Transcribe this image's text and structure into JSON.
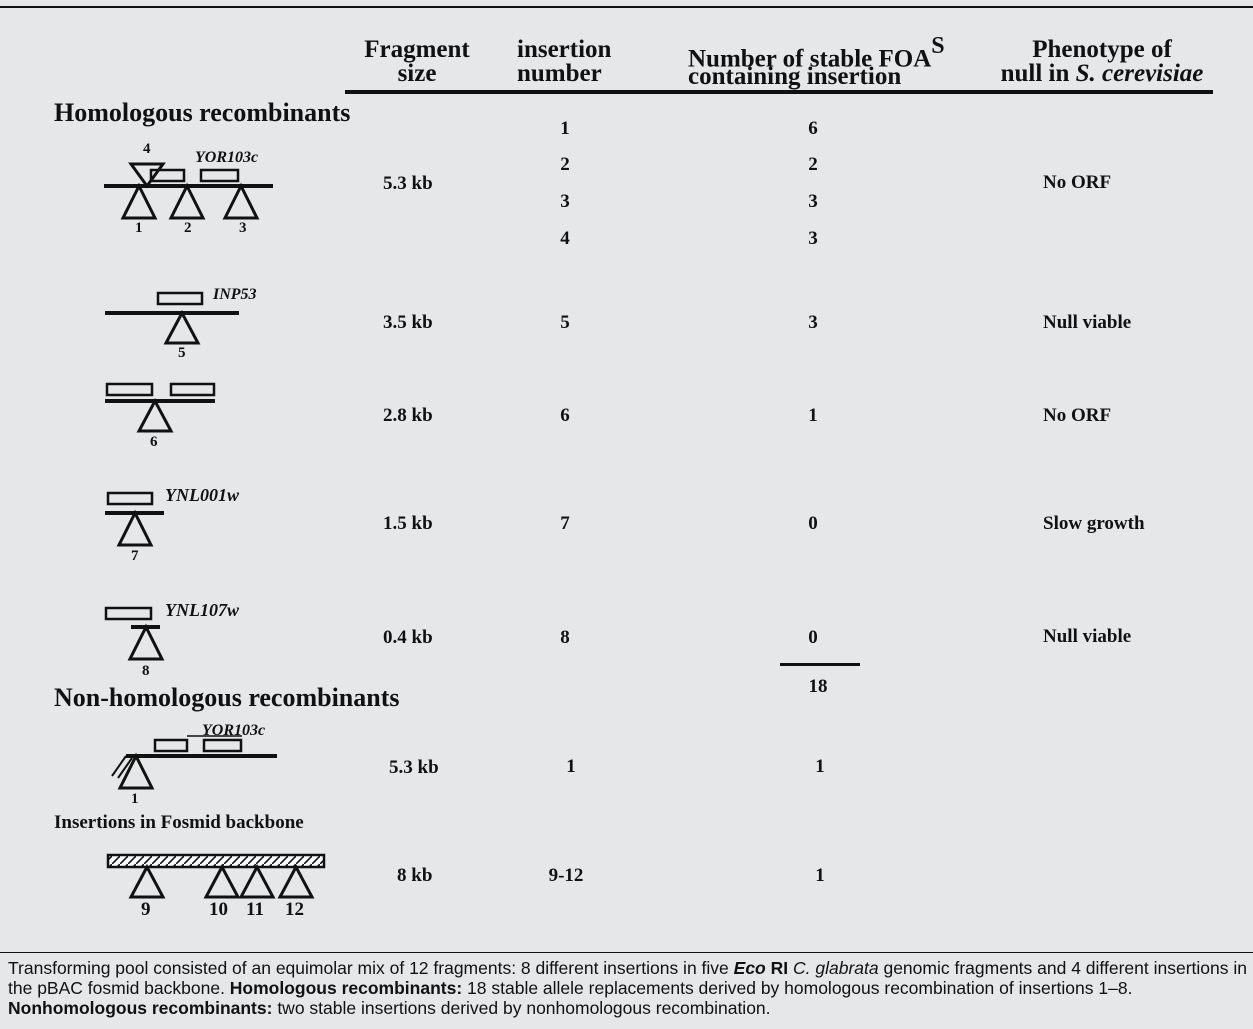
{
  "headers": {
    "fragment_size": [
      "Fragment",
      "size"
    ],
    "insertion_number": [
      "insertion",
      "number"
    ],
    "stable_foa": [
      "Number of stable FOA",
      "S",
      "containing insertion"
    ],
    "phenotype": [
      "Phenotype of",
      "null in ",
      "S. cerevisiae"
    ]
  },
  "sections": {
    "homologous": "Homologous recombinants",
    "nonhomologous": "Non-homologous recombinants",
    "fosmid": "Insertions in Fosmid backbone"
  },
  "rows": [
    {
      "gene": "YOR103c",
      "size": "5.3 kb",
      "insertions": [
        "1",
        "2",
        "3",
        "4"
      ],
      "counts": [
        "6",
        "2",
        "3",
        "3"
      ],
      "phenotype": "No ORF",
      "labels": [
        "4",
        "1",
        "2",
        "3"
      ]
    },
    {
      "gene": "INP53",
      "size": "3.5 kb",
      "insertions": [
        "5"
      ],
      "counts": [
        "3"
      ],
      "phenotype": "Null viable",
      "labels": [
        "5"
      ]
    },
    {
      "gene": "",
      "size": "2.8 kb",
      "insertions": [
        "6"
      ],
      "counts": [
        "1"
      ],
      "phenotype": "No ORF",
      "labels": [
        "6"
      ]
    },
    {
      "gene": "YNL001w",
      "size": "1.5 kb",
      "insertions": [
        "7"
      ],
      "counts": [
        "0"
      ],
      "phenotype": "Slow growth",
      "labels": [
        "7"
      ]
    },
    {
      "gene": "YNL107w",
      "size": "0.4 kb",
      "insertions": [
        "8"
      ],
      "counts": [
        "0"
      ],
      "phenotype": "Null viable",
      "labels": [
        "8"
      ]
    }
  ],
  "total": "18",
  "nonhomologous_row": {
    "gene": "YOR103c",
    "size": "5.3 kb",
    "insertion": "1",
    "count": "1",
    "labels": [
      "1"
    ]
  },
  "fosmid_row": {
    "size": "8 kb",
    "insertion": "9-12",
    "count": "1",
    "labels": [
      "9",
      "10",
      "11",
      "12"
    ]
  },
  "caption": {
    "p1": "Transforming pool consisted of an equimolar mix of 12 fragments: 8 different insertions in five ",
    "eco": "Eco",
    "ri": " RI",
    "p2": " ",
    "cg": "C. glabrata",
    "p3": " genomic fragments and 4 different insertions in the pBAC fosmid backbone. ",
    "hom_label": "Homologous recombinants:",
    "p4": " 18 stable allele replacements derived by homologous recombination of insertions 1–8. ",
    "nonhom_label": "Nonhomologous recombinants:",
    "p5": " two stable insertions derived by nonhomologous recombination."
  }
}
